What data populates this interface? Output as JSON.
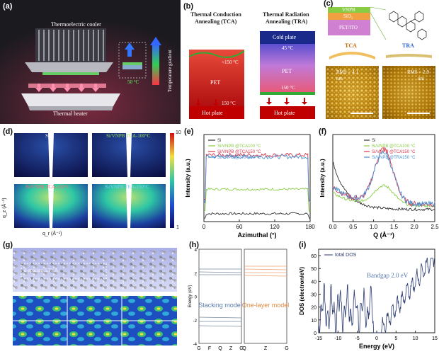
{
  "panels": {
    "a": {
      "label": "(a)",
      "cooler": "Thermoelectric cooler",
      "heater": "Thermal heater",
      "gradient": "Temperature gradient",
      "temp": "50 °C"
    },
    "b": {
      "label": "(b)",
      "tca_title_1": "Thermal Conduction",
      "tca_title_2": "Annealing (TCA)",
      "tra_title_1": "Thermal Radiation",
      "tra_title_2": "Annealing (TRA)",
      "tca_top": "<150 °C",
      "tca_pet": "PET",
      "tca_bottom": "150 °C",
      "tca_hot": "Hot plate",
      "tra_cold": "Cold plate",
      "tra_top": "45 °C",
      "tra_pet": "PET",
      "tra_bottom": "150 °C",
      "tra_hot": "Hot plate"
    },
    "c": {
      "label": "(c)",
      "layer1": "VNPB",
      "layer2": "SiO₂",
      "layer3": "PET/ITO",
      "tca": "TCA",
      "tra": "TRA",
      "rms1": "RMS = 4.1",
      "rms1_unit": "nm",
      "rms2": "RMS = 2.9",
      "rms2_unit": "nm"
    },
    "d": {
      "label": "(d)",
      "t1": "Si",
      "t2": "Si/VNPB TCA-100°C",
      "t3": "Si/VNPB TCA-150°C",
      "t4": "Si/VNPB TRA-150°C",
      "ylabel": "q_z (Å⁻¹)",
      "xlabel": "q_r (Å⁻¹)",
      "cb_top": "10",
      "cb_bottom": "1"
    },
    "e": {
      "label": "(e)"
    },
    "f": {
      "label": "(f)"
    },
    "g": {
      "label": "(g)",
      "spacing": "d-spacing 5.71 Å"
    },
    "h": {
      "label": "(h)"
    },
    "i": {
      "label": "(i)"
    }
  },
  "chart_data": [
    {
      "type": "line",
      "panel": "e",
      "xlabel": "Azimuthal (°)",
      "ylabel": "Intensity (a.u.)",
      "xlim": [
        0,
        180
      ],
      "xticks": [
        0,
        60,
        120,
        180
      ],
      "series": [
        {
          "name": "Si",
          "color": "#333333",
          "level": 0.08
        },
        {
          "name": "Si/VNPB @TCA100 °C",
          "color": "#88cc44",
          "level": 0.38
        },
        {
          "name": "Si/VNPB @TCA150 °C",
          "color": "#d9364a",
          "level": 0.8
        },
        {
          "name": "Si/VNPB @TRA150 °C",
          "color": "#4a8fd0",
          "level": 0.78
        }
      ]
    },
    {
      "type": "line",
      "panel": "f",
      "xlabel": "Q (Å⁻¹)",
      "ylabel": "Intensity (a.u.)",
      "xlim": [
        0,
        2.5
      ],
      "xticks": [
        "0.0",
        "0.5",
        "1.0",
        "1.5",
        "2.0",
        "2.5"
      ],
      "series": [
        {
          "name": "Si",
          "color": "#333333"
        },
        {
          "name": "Si/VNPB @TCA100 °C",
          "color": "#88cc44"
        },
        {
          "name": "Si/VNPB @TCA150 °C",
          "color": "#d9364a"
        },
        {
          "name": "Si/VNPB @TRA150 °C",
          "color": "#4a8fd0"
        }
      ]
    },
    {
      "type": "line",
      "panel": "h",
      "ylabel": "Energy (eV)",
      "yticks": [
        "-4",
        "-2",
        "0",
        "2",
        "4"
      ],
      "left_xticks": [
        "G",
        "F",
        "Q",
        "Z",
        "G"
      ],
      "right_xticks": [
        "Q",
        "Z",
        "G"
      ],
      "left_title": "Stacking model",
      "right_title": "One-layer model"
    },
    {
      "type": "line",
      "panel": "i",
      "xlabel": "Energy (eV)",
      "ylabel": "DOS (electron/eV)",
      "xlim": [
        -15,
        15
      ],
      "ylim": [
        0,
        65
      ],
      "xticks": [
        "-15",
        "-10",
        "-5",
        "0",
        "5",
        "10",
        "15"
      ],
      "yticks": [
        "0",
        "10",
        "20",
        "30",
        "40",
        "50",
        "60"
      ],
      "legend": "total DOS",
      "annotation": "Bandgap 2.0 eV"
    }
  ]
}
